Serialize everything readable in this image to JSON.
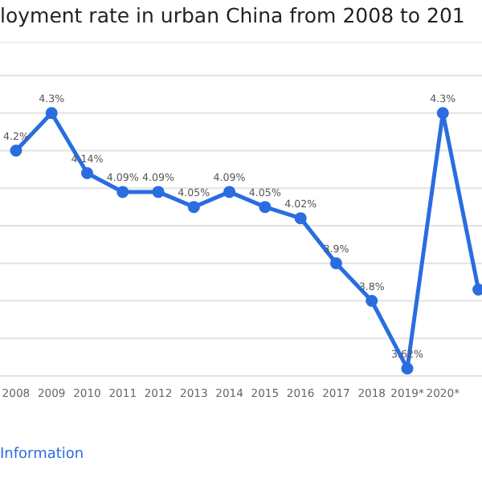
{
  "chart_data": {
    "type": "line",
    "title": "loyment rate in urban China from 2008 to 201",
    "categories": [
      "2008",
      "2009",
      "2010",
      "2011",
      "2012",
      "2013",
      "2014",
      "2015",
      "2016",
      "2017",
      "2018",
      "2019*",
      "2020*",
      null
    ],
    "series": [
      {
        "color": "#2a6de0",
        "values": [
          4.2,
          4.3,
          4.14,
          4.09,
          4.09,
          4.05,
          4.09,
          4.05,
          4.02,
          3.9,
          3.8,
          3.62,
          4.3,
          3.83
        ],
        "value_labels": [
          "4.2%",
          "4.3%",
          "4.14%",
          "4.09%",
          "4.09%",
          "4.05%",
          "4.09%",
          "4.05%",
          "4.02%",
          "3.9%",
          "3.8%",
          "3.62%",
          "4.3%",
          null
        ]
      }
    ],
    "ylim": [
      3.6,
      4.4
    ],
    "tick_labels": "x",
    "grid": "y",
    "marker": "circle",
    "line_style": "solid",
    "legend": false,
    "annotations": [
      "Information"
    ]
  }
}
